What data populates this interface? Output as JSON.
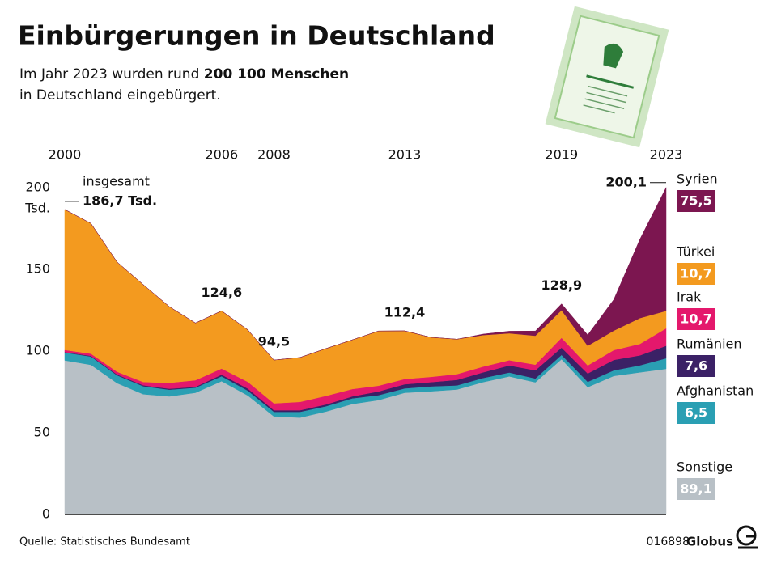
{
  "chart_data": {
    "type": "stacked_area",
    "title": "Einbürgerungen in Deutschland",
    "subtitle": {
      "start": "Im Jahr 2023 wurden rund ",
      "bold": "200 100 Menschen",
      "end": "in Deutschland eingebürgert."
    },
    "x": [
      2000,
      2001,
      2002,
      2003,
      2004,
      2005,
      2006,
      2007,
      2008,
      2009,
      2010,
      2011,
      2012,
      2013,
      2014,
      2015,
      2016,
      2017,
      2018,
      2019,
      2020,
      2021,
      2022,
      2023
    ],
    "xlim": [
      2000,
      2023
    ],
    "xticks": [
      2000,
      2006,
      2008,
      2013,
      2019,
      2023
    ],
    "ylim": [
      0,
      200
    ],
    "yticks": [
      0,
      50,
      100,
      150,
      200
    ],
    "y_unit": "Tsd.",
    "series": [
      {
        "name": "Sonstige",
        "color": "#b8c0c6",
        "last_label": "89,1",
        "values": [
          94.3,
          91.6,
          80.4,
          73.6,
          72.3,
          74.5,
          81.6,
          72.8,
          60.0,
          59.3,
          63.0,
          67.6,
          70.0,
          74.5,
          75.4,
          76.5,
          81.0,
          84.5,
          80.9,
          95.0,
          77.9,
          84.8,
          87.0,
          89.1
        ]
      },
      {
        "name": "Afghanistan",
        "color": "#2a9fb3",
        "last_label": "6,5",
        "values": [
          4.8,
          5.1,
          4.8,
          4.9,
          4.1,
          3.1,
          3.0,
          3.0,
          2.8,
          3.5,
          3.3,
          3.5,
          3.0,
          2.7,
          3.0,
          2.5,
          2.5,
          2.4,
          2.3,
          2.6,
          3.3,
          3.4,
          4.3,
          6.5
        ]
      },
      {
        "name": "Rumänien",
        "color": "#3b2166",
        "last_label": "7,6",
        "values": [
          0.3,
          0.4,
          0.5,
          0.6,
          0.6,
          0.5,
          1.0,
          1.3,
          1.0,
          1.0,
          1.1,
          1.2,
          2.3,
          2.5,
          2.6,
          3.4,
          3.5,
          4.3,
          5.0,
          4.5,
          5.1,
          6.4,
          6.1,
          7.6
        ]
      },
      {
        "name": "Irak",
        "color": "#e4186c",
        "last_label": "10,7",
        "values": [
          1.3,
          1.3,
          1.7,
          2.0,
          3.6,
          4.1,
          3.7,
          4.1,
          4.2,
          5.1,
          5.2,
          4.5,
          3.5,
          3.2,
          3.2,
          3.5,
          3.5,
          3.2,
          3.5,
          6.0,
          4.9,
          6.0,
          7.0,
          10.7
        ]
      },
      {
        "name": "Türkei",
        "color": "#f39a1f",
        "last_label": "10,7",
        "values": [
          86.0,
          79.7,
          67.1,
          59.6,
          46.6,
          35.0,
          35.3,
          31.8,
          26.5,
          27.2,
          29.0,
          30.1,
          33.5,
          29.5,
          24.2,
          21.4,
          19.3,
          16.5,
          17.7,
          16.9,
          12.0,
          11.9,
          15.8,
          10.7
        ]
      },
      {
        "name": "Syrien",
        "color": "#7c1650",
        "last_label": "75,5",
        "values": [
          0,
          0,
          0,
          0,
          0,
          0,
          0,
          0,
          0,
          0,
          0,
          0,
          0,
          0,
          0,
          0,
          0.6,
          1.3,
          2.9,
          3.9,
          6.7,
          19.1,
          48.3,
          75.5
        ]
      }
    ],
    "total_label": "insgesamt",
    "annotations": [
      {
        "x": 2000,
        "value": 186.7,
        "label": "186,7 Tsd."
      },
      {
        "x": 2006,
        "value": 124.6,
        "label": "124,6"
      },
      {
        "x": 2008,
        "value": 94.5,
        "label": "94,5"
      },
      {
        "x": 2013,
        "value": 112.4,
        "label": "112,4"
      },
      {
        "x": 2019,
        "value": 128.9,
        "label": "128,9"
      },
      {
        "x": 2023,
        "value": 200.1,
        "label": "200,1"
      }
    ],
    "source": "Quelle: Statistisches Bundesamt",
    "code": "016898",
    "brand": "Globus"
  }
}
